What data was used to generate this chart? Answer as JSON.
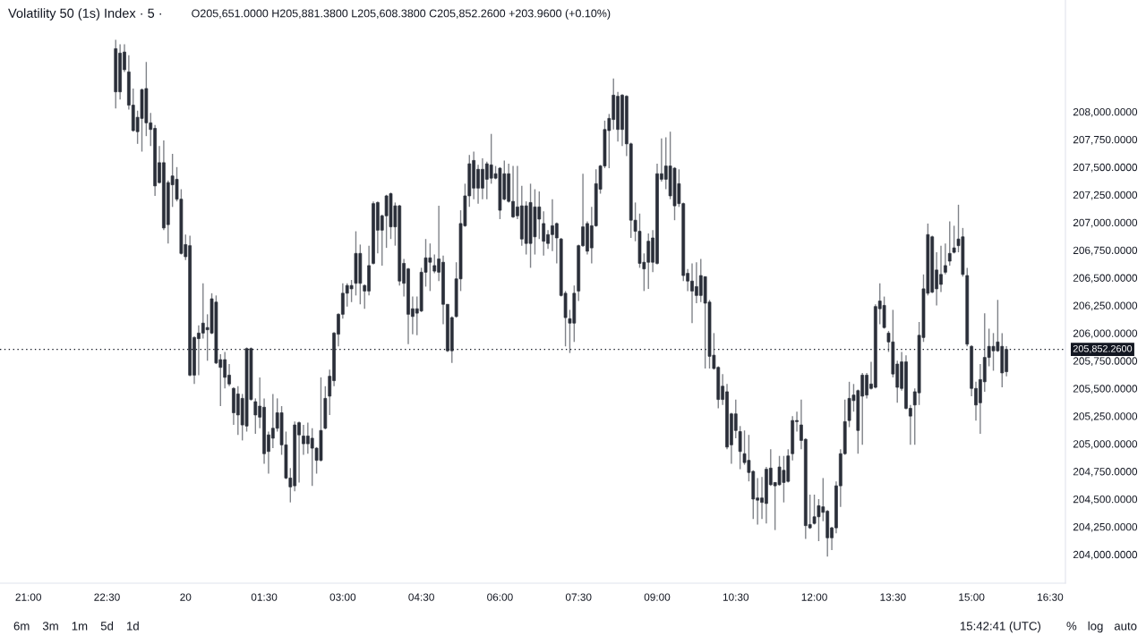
{
  "chart_data": {
    "type": "candlestick",
    "title": "Volatility 50 (1s) Index · 5 ·",
    "subtitle": "O205,651.0000 H205,881.3800 L205,608.3800 C205,852.2600 +203.9600 (+0.10%)",
    "annotations": [
      "6m",
      "3m",
      "1m",
      "5d",
      "1d",
      "15:42:41 (UTC)",
      "%",
      "log",
      "auto"
    ],
    "color": "#2a2e39",
    "categories": [
      null,
      null,
      null,
      null,
      null,
      null,
      "21:00",
      null,
      null,
      null,
      null,
      null,
      null,
      null,
      null,
      null,
      null,
      null,
      null,
      null,
      null,
      null,
      null,
      null,
      "22:30",
      null,
      null,
      null,
      null,
      null,
      null,
      null,
      null,
      null,
      null,
      null,
      null,
      null,
      null,
      null,
      null,
      null,
      "20",
      null,
      null,
      null,
      null,
      null,
      null,
      null,
      null,
      null,
      null,
      null,
      null,
      null,
      null,
      null,
      null,
      null,
      "01:30",
      null,
      null,
      null,
      null,
      null,
      null,
      null,
      null,
      null,
      null,
      null,
      null,
      null,
      null,
      null,
      null,
      null,
      "03:00",
      null,
      null,
      null,
      null,
      null,
      null,
      null,
      null,
      null,
      null,
      null,
      null,
      null,
      null,
      null,
      null,
      null,
      "04:30",
      null,
      null,
      null,
      null,
      null,
      null,
      null,
      null,
      null,
      null,
      null,
      null,
      null,
      null,
      null,
      null,
      null,
      "06:00",
      null,
      null,
      null,
      null,
      null,
      null,
      null,
      null,
      null,
      null,
      null,
      null,
      null,
      null,
      null,
      null,
      null,
      "07:30",
      null,
      null,
      null,
      null,
      null,
      null,
      null,
      null,
      null,
      null,
      null,
      null,
      null,
      null,
      null,
      null,
      null,
      "09:00",
      null,
      null,
      null,
      null,
      null,
      null,
      null,
      null,
      null,
      null,
      null,
      null,
      null,
      null,
      null,
      null,
      null,
      "10:30",
      null,
      null,
      null,
      null,
      null,
      null,
      null,
      null,
      null,
      null,
      null,
      null,
      null,
      null,
      null,
      null,
      null,
      "12:00",
      null,
      null,
      null,
      null,
      null,
      null,
      null,
      null,
      null,
      null,
      null,
      null,
      null,
      null,
      null,
      null,
      null,
      "13:30",
      null,
      null,
      null,
      null,
      null,
      null,
      null,
      null,
      null,
      null,
      null,
      null,
      null,
      null,
      null,
      null,
      null,
      "15:00",
      null,
      null,
      null,
      null,
      null,
      null,
      null,
      null,
      null,
      null,
      null,
      null,
      null,
      null,
      null,
      null,
      null,
      "16:30",
      null,
      null,
      null
    ],
    "ohlc": [
      null,
      null,
      null,
      null,
      null,
      null,
      null,
      null,
      null,
      null,
      null,
      null,
      null,
      null,
      null,
      null,
      null,
      null,
      null,
      null,
      null,
      null,
      null,
      null,
      null,
      null,
      [
        208180,
        208650,
        208030,
        208570
      ],
      [
        208180,
        208610,
        208110,
        208530
      ],
      [
        208380,
        208610,
        208360,
        208540
      ],
      [
        208060,
        208510,
        208020,
        208360
      ],
      [
        207830,
        208210,
        207820,
        208060
      ],
      [
        207820,
        208010,
        207710,
        207950
      ],
      [
        207940,
        208210,
        207640,
        208200
      ],
      [
        207900,
        208450,
        207780,
        208210
      ],
      [
        207840,
        207990,
        207690,
        207900
      ],
      [
        207330,
        207880,
        207240,
        207850
      ],
      [
        207360,
        207690,
        207350,
        207540
      ],
      [
        206950,
        207740,
        206930,
        207540
      ],
      [
        206980,
        207380,
        206810,
        207360
      ],
      [
        207340,
        207620,
        207140,
        207420
      ],
      [
        207210,
        207500,
        207190,
        207390
      ],
      [
        206720,
        207300,
        206710,
        207210
      ],
      [
        206690,
        206890,
        206660,
        206800
      ],
      [
        205620,
        206880,
        205610,
        206790
      ],
      [
        205620,
        205970,
        205540,
        205960
      ],
      [
        205950,
        206070,
        205620,
        206000
      ],
      [
        206000,
        206450,
        205950,
        206090
      ],
      [
        206030,
        206170,
        205750,
        206050
      ],
      [
        206000,
        206360,
        205990,
        206310
      ],
      [
        205730,
        206340,
        205720,
        206280
      ],
      [
        205690,
        205810,
        205340,
        205760
      ],
      [
        205600,
        205830,
        205500,
        205760
      ],
      [
        205540,
        205720,
        205520,
        205620
      ],
      [
        205280,
        205510,
        205170,
        205500
      ],
      [
        205260,
        205520,
        205080,
        205450
      ],
      [
        205170,
        205450,
        205030,
        205410
      ],
      [
        205160,
        205870,
        205110,
        205860
      ],
      [
        205400,
        205870,
        205390,
        205860
      ],
      [
        205260,
        205410,
        205090,
        205380
      ],
      [
        205240,
        205600,
        205140,
        205340
      ],
      [
        204910,
        205410,
        204820,
        205330
      ],
      [
        204930,
        205110,
        204730,
        205080
      ],
      [
        205050,
        205450,
        204960,
        205140
      ],
      [
        205140,
        205410,
        205110,
        205280
      ],
      [
        204990,
        205340,
        204900,
        205280
      ],
      [
        204690,
        205110,
        204680,
        204990
      ],
      [
        204610,
        204780,
        204470,
        204690
      ],
      [
        204620,
        205200,
        204570,
        205170
      ],
      [
        205080,
        205200,
        204650,
        205190
      ],
      [
        205000,
        205170,
        204900,
        205070
      ],
      [
        205000,
        205190,
        204910,
        205070
      ],
      [
        204960,
        205140,
        204620,
        205050
      ],
      [
        204850,
        204970,
        204730,
        204960
      ],
      [
        204850,
        205600,
        204840,
        205120
      ],
      [
        205140,
        205520,
        205130,
        205410
      ],
      [
        205430,
        205670,
        205260,
        205610
      ],
      [
        205570,
        206010,
        205520,
        206000
      ],
      [
        205990,
        206180,
        205880,
        206170
      ],
      [
        206170,
        206450,
        206130,
        206360
      ],
      [
        206360,
        206450,
        206240,
        206430
      ],
      [
        206400,
        206480,
        206280,
        206430
      ],
      [
        206450,
        206920,
        206340,
        206720
      ],
      [
        206450,
        206800,
        206260,
        206720
      ],
      [
        206380,
        206440,
        206220,
        206430
      ],
      [
        206380,
        206790,
        206340,
        206610
      ],
      [
        206630,
        207190,
        206620,
        207170
      ],
      [
        206930,
        207190,
        206720,
        207180
      ],
      [
        206930,
        207070,
        206610,
        207060
      ],
      [
        207060,
        207250,
        206770,
        207240
      ],
      [
        206960,
        207270,
        206850,
        207260
      ],
      [
        206960,
        207180,
        206790,
        207150
      ],
      [
        206470,
        207160,
        206430,
        207150
      ],
      [
        206450,
        206670,
        206330,
        206630
      ],
      [
        206170,
        206590,
        205900,
        206580
      ],
      [
        206150,
        206330,
        205990,
        206220
      ],
      [
        206180,
        206330,
        205980,
        206220
      ],
      [
        206200,
        206590,
        206190,
        206550
      ],
      [
        206550,
        206850,
        206420,
        206680
      ],
      [
        206640,
        206810,
        206380,
        206680
      ],
      [
        206560,
        206710,
        206540,
        206610
      ],
      [
        206550,
        207150,
        206470,
        206670
      ],
      [
        206260,
        206700,
        206080,
        206640
      ],
      [
        205840,
        206260,
        205830,
        206260
      ],
      [
        205840,
        206150,
        205730,
        206140
      ],
      [
        206150,
        206640,
        206140,
        206490
      ],
      [
        206490,
        207110,
        206380,
        206990
      ],
      [
        206970,
        207350,
        206960,
        207240
      ],
      [
        207240,
        207610,
        207140,
        207530
      ],
      [
        207310,
        207640,
        207210,
        207560
      ],
      [
        207310,
        207520,
        207170,
        207480
      ],
      [
        207310,
        207580,
        207210,
        207480
      ],
      [
        207390,
        207550,
        207210,
        207530
      ],
      [
        207400,
        207800,
        207350,
        207520
      ],
      [
        207400,
        207510,
        207390,
        207440
      ],
      [
        207110,
        207500,
        207030,
        207490
      ],
      [
        207210,
        207560,
        207200,
        207440
      ],
      [
        207190,
        207530,
        207180,
        207440
      ],
      [
        207050,
        207510,
        207040,
        207190
      ],
      [
        207060,
        207510,
        207030,
        207140
      ],
      [
        206850,
        207330,
        206790,
        207150
      ],
      [
        206810,
        207190,
        206710,
        207150
      ],
      [
        206810,
        207350,
        206590,
        207180
      ],
      [
        206870,
        207300,
        206710,
        207140
      ],
      [
        207030,
        207280,
        206850,
        207140
      ],
      [
        206830,
        207100,
        206700,
        206990
      ],
      [
        206810,
        206930,
        206760,
        206890
      ],
      [
        206890,
        207210,
        206740,
        206970
      ],
      [
        206860,
        207000,
        206630,
        206990
      ],
      [
        206340,
        206860,
        206330,
        206850
      ],
      [
        206140,
        206380,
        205880,
        206360
      ],
      [
        206090,
        206210,
        205820,
        206130
      ],
      [
        206090,
        206430,
        205920,
        206360
      ],
      [
        206380,
        206800,
        206290,
        206790
      ],
      [
        206790,
        207440,
        206780,
        206960
      ],
      [
        206740,
        207010,
        206710,
        206990
      ],
      [
        206770,
        207140,
        206630,
        206970
      ],
      [
        206970,
        207480,
        206960,
        207350
      ],
      [
        207300,
        207520,
        207260,
        207510
      ],
      [
        207510,
        207920,
        207490,
        207840
      ],
      [
        207830,
        207980,
        207490,
        207940
      ],
      [
        207930,
        208300,
        207840,
        208150
      ],
      [
        207840,
        208180,
        207730,
        208140
      ],
      [
        207840,
        208160,
        207690,
        208150
      ],
      [
        207710,
        208150,
        207600,
        208140
      ],
      [
        207020,
        207720,
        206860,
        207710
      ],
      [
        206920,
        207180,
        206830,
        207020
      ],
      [
        206630,
        207080,
        206590,
        206920
      ],
      [
        206580,
        206720,
        206380,
        206640
      ],
      [
        206640,
        206900,
        206400,
        206830
      ],
      [
        206640,
        206930,
        206550,
        206860
      ],
      [
        206630,
        207530,
        206620,
        207440
      ],
      [
        207390,
        207760,
        207370,
        207440
      ],
      [
        207390,
        207770,
        207300,
        207510
      ],
      [
        207240,
        207820,
        207210,
        207510
      ],
      [
        207150,
        207500,
        207020,
        207490
      ],
      [
        207170,
        207480,
        207140,
        207350
      ],
      [
        206520,
        207180,
        206470,
        207170
      ],
      [
        206470,
        206580,
        206380,
        206540
      ],
      [
        206380,
        206630,
        206090,
        206470
      ],
      [
        206340,
        206640,
        206270,
        206420
      ],
      [
        206340,
        206670,
        206280,
        206520
      ],
      [
        206270,
        206510,
        205680,
        206510
      ],
      [
        205790,
        206300,
        205680,
        206280
      ],
      [
        205680,
        206000,
        205670,
        205800
      ],
      [
        205400,
        205700,
        205320,
        205690
      ],
      [
        205400,
        205630,
        205350,
        205520
      ],
      [
        204970,
        205540,
        204950,
        205470
      ],
      [
        204990,
        205280,
        204820,
        205270
      ],
      [
        205120,
        205400,
        205050,
        205270
      ],
      [
        204930,
        205160,
        204770,
        205110
      ],
      [
        204830,
        205120,
        204810,
        204910
      ],
      [
        204740,
        205080,
        204660,
        204850
      ],
      [
        204500,
        204760,
        204320,
        204750
      ],
      [
        204490,
        204690,
        204270,
        204510
      ],
      [
        204470,
        204700,
        204320,
        204510
      ],
      [
        204460,
        204790,
        204280,
        204770
      ],
      [
        204630,
        204950,
        204620,
        204780
      ],
      [
        204620,
        204650,
        204220,
        204650
      ],
      [
        204630,
        204890,
        204620,
        204790
      ],
      [
        204650,
        204890,
        204470,
        204760
      ],
      [
        204660,
        204950,
        204650,
        204890
      ],
      [
        204910,
        205250,
        204850,
        205210
      ],
      [
        205200,
        205290,
        205110,
        205210
      ],
      [
        205030,
        205400,
        204950,
        205170
      ],
      [
        204260,
        205050,
        204140,
        205040
      ],
      [
        204240,
        204540,
        204230,
        204270
      ],
      [
        204280,
        204540,
        204270,
        204340
      ],
      [
        204340,
        204500,
        204120,
        204440
      ],
      [
        204380,
        204690,
        204300,
        204430
      ],
      [
        204150,
        204400,
        203980,
        204390
      ],
      [
        204150,
        204250,
        204040,
        204240
      ],
      [
        204240,
        204660,
        204190,
        204620
      ],
      [
        204620,
        204950,
        204430,
        204910
      ],
      [
        204910,
        205400,
        204900,
        205200
      ],
      [
        205210,
        205560,
        205150,
        205410
      ],
      [
        205390,
        205540,
        205290,
        205440
      ],
      [
        205120,
        205490,
        204910,
        205480
      ],
      [
        205430,
        205640,
        204990,
        205620
      ],
      [
        205440,
        205640,
        205410,
        205620
      ],
      [
        205500,
        205740,
        205490,
        205540
      ],
      [
        205510,
        206260,
        205500,
        206240
      ],
      [
        206220,
        206450,
        206080,
        206290
      ],
      [
        206050,
        206330,
        206040,
        206250
      ],
      [
        205920,
        206020,
        205830,
        206000
      ],
      [
        205630,
        206210,
        205600,
        205920
      ],
      [
        205510,
        205750,
        205370,
        205720
      ],
      [
        205500,
        205830,
        205480,
        205740
      ],
      [
        205320,
        205800,
        205310,
        205740
      ],
      [
        205250,
        205350,
        204990,
        205320
      ],
      [
        205350,
        205500,
        204990,
        205470
      ],
      [
        205460,
        206100,
        205350,
        205980
      ],
      [
        205960,
        206530,
        205920,
        206400
      ],
      [
        206360,
        206990,
        206340,
        206890
      ],
      [
        206370,
        206880,
        206360,
        206870
      ],
      [
        206400,
        206730,
        206250,
        206570
      ],
      [
        206440,
        206790,
        206370,
        206530
      ],
      [
        206550,
        206810,
        206530,
        206610
      ],
      [
        206650,
        207010,
        206610,
        206720
      ],
      [
        206730,
        206970,
        206720,
        206770
      ],
      [
        206790,
        207160,
        206730,
        206850
      ],
      [
        206530,
        206950,
        206510,
        206870
      ],
      [
        205900,
        206590,
        205880,
        206520
      ],
      [
        205500,
        205890,
        205430,
        205880
      ],
      [
        205350,
        205560,
        205210,
        205500
      ],
      [
        205370,
        205720,
        205090,
        205580
      ],
      [
        205560,
        206180,
        205470,
        205780
      ],
      [
        205780,
        206040,
        205700,
        205880
      ],
      [
        205840,
        206000,
        205660,
        205880
      ],
      [
        205840,
        206300,
        205830,
        205920
      ],
      [
        205640,
        206000,
        205510,
        205880
      ],
      [
        205651,
        205881.38,
        205608.38,
        205852.26
      ],
      null,
      null,
      null,
      null,
      null,
      null,
      null,
      null,
      null,
      null,
      null,
      null,
      null
    ],
    "ylim": [
      203740,
      209010
    ],
    "yticks": [
      {
        "value": 204000,
        "label": "204,000.0000"
      },
      {
        "value": 204250,
        "label": "204,250.0000"
      },
      {
        "value": 204500,
        "label": "204,500.0000"
      },
      {
        "value": 204750,
        "label": "204,750.0000"
      },
      {
        "value": 205000,
        "label": "205,000.0000"
      },
      {
        "value": 205250,
        "label": "205,250.0000"
      },
      {
        "value": 205500,
        "label": "205,500.0000"
      },
      {
        "value": 205750,
        "label": "205,750.0000"
      },
      {
        "value": 206000,
        "label": "206,000.0000"
      },
      {
        "value": 206250,
        "label": "206,250.0000"
      },
      {
        "value": 206500,
        "label": "206,500.0000"
      },
      {
        "value": 206750,
        "label": "206,750.0000"
      },
      {
        "value": 207000,
        "label": "207,000.0000"
      },
      {
        "value": 207250,
        "label": "207,250.0000"
      },
      {
        "value": 207500,
        "label": "207,500.0000"
      },
      {
        "value": 207750,
        "label": "207,750.0000"
      },
      {
        "value": 208000,
        "label": "208,000.0000"
      }
    ],
    "ref_lines": [
      {
        "axis": "y",
        "value": 205852.26,
        "label": "205,852.2600",
        "color": "#131722",
        "line_style": "dotted"
      }
    ]
  }
}
